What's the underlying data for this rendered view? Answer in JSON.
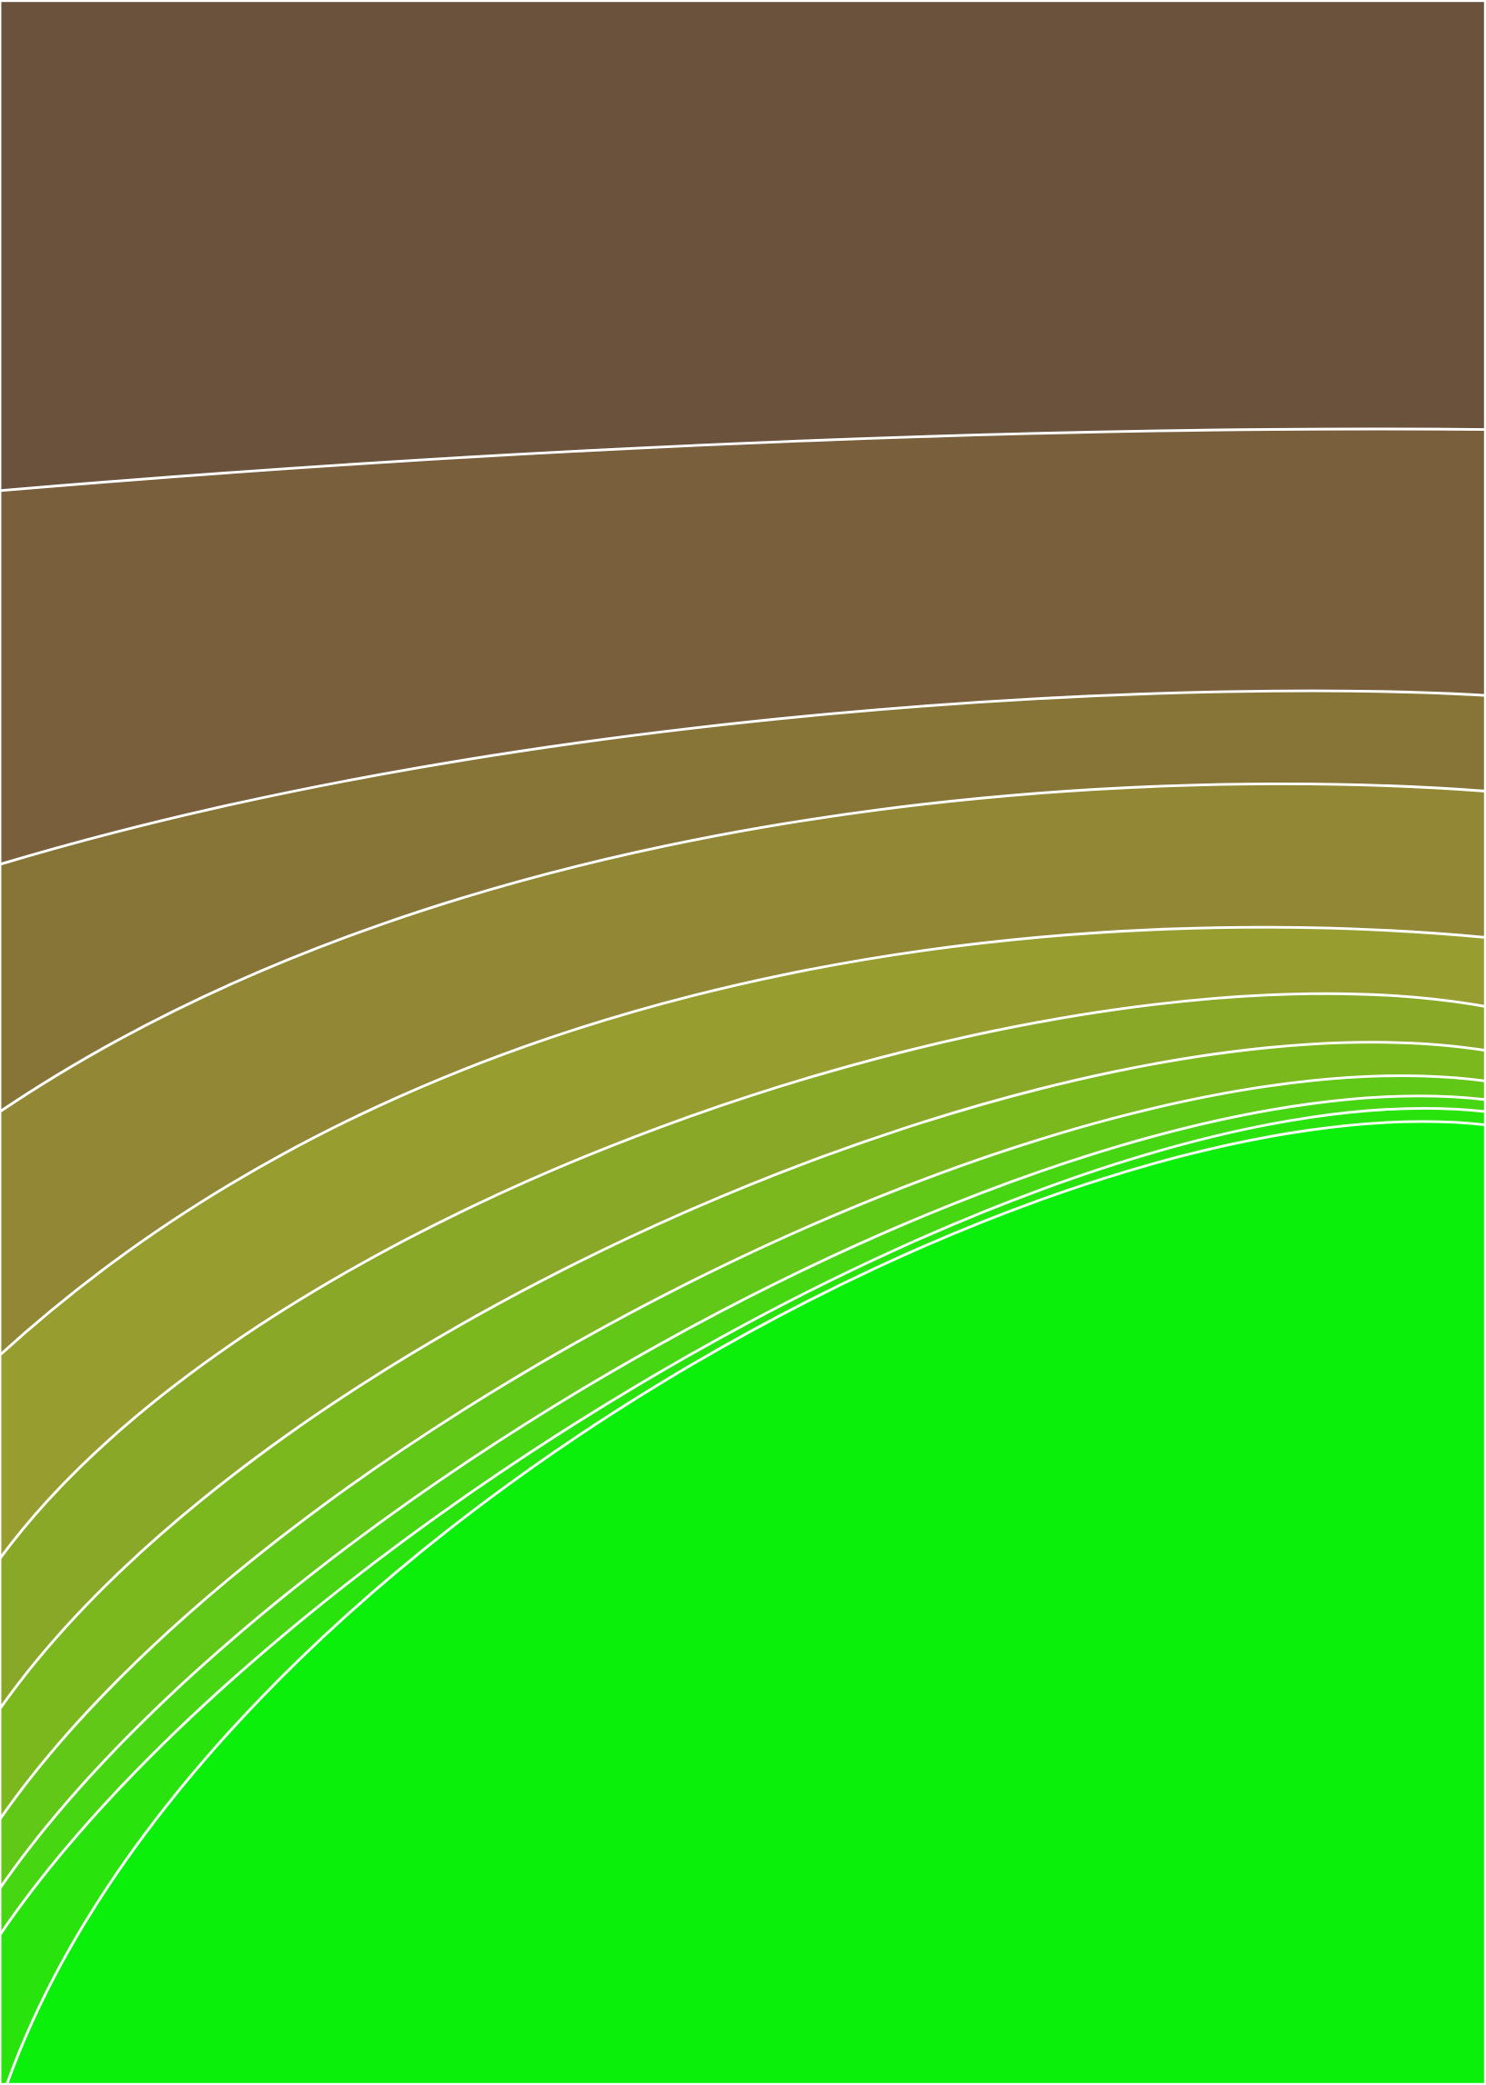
{
  "chart_data": {
    "type": "contourf",
    "colors": [
      "#6b523c",
      "#7a5f3c",
      "#877538",
      "#918735",
      "#989d30",
      "#8aa828",
      "#7ab81e",
      "#62c818",
      "#46d612",
      "#28e40c",
      "#0af00a"
    ]
  }
}
